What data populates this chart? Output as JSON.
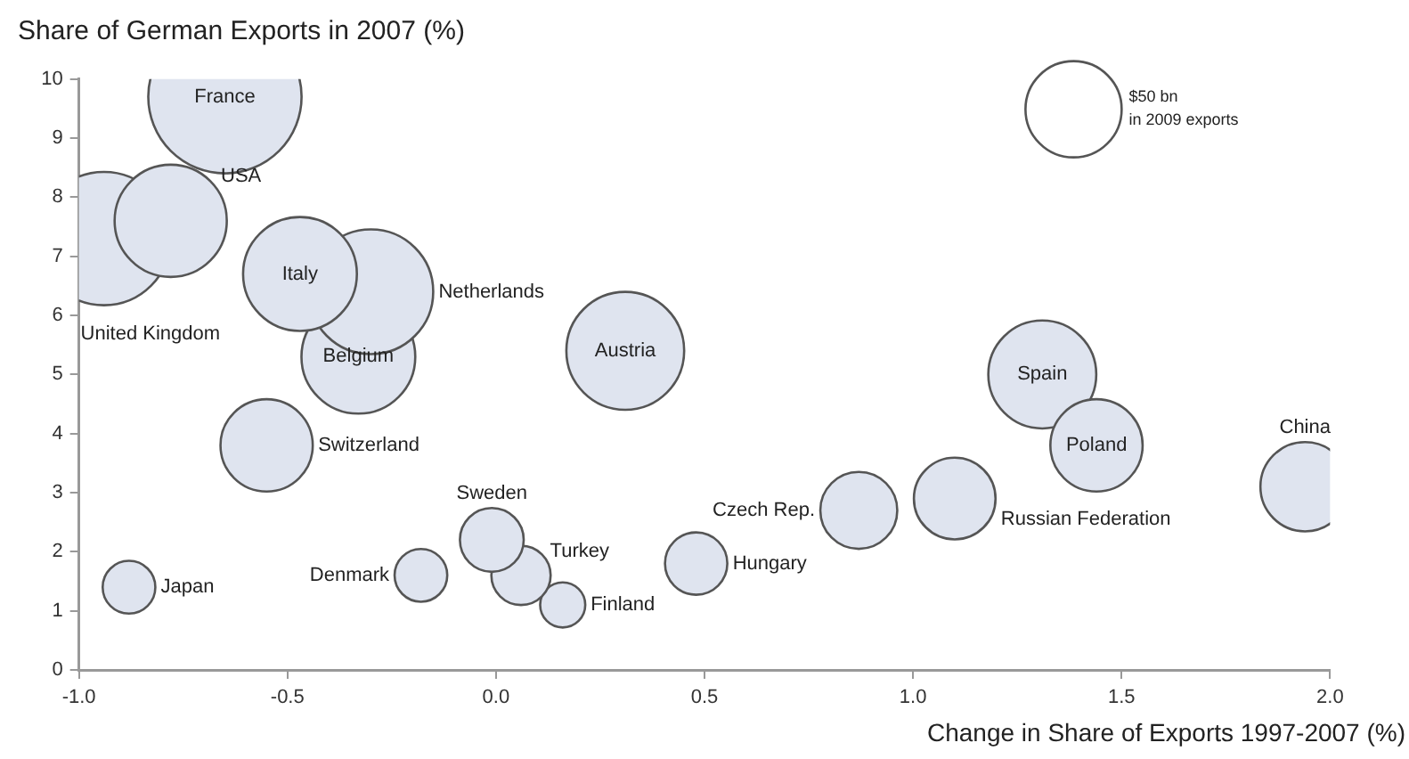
{
  "chart_data": {
    "type": "bubble",
    "ylabel": "Share of German Exports in 2007 (%)",
    "xlabel": "Change in Share of Exports 1997-2007 (%)",
    "xlim": [
      -1,
      2
    ],
    "xticks": [
      {
        "value": -1,
        "label": "-1.0"
      },
      {
        "value": -0.5,
        "label": "-0.5"
      },
      {
        "value": 0,
        "label": "0.0"
      },
      {
        "value": 0.5,
        "label": "0.5"
      },
      {
        "value": 1,
        "label": "1.0"
      },
      {
        "value": 1.5,
        "label": "1.5"
      },
      {
        "value": 2,
        "label": "2.0"
      }
    ],
    "ylim": [
      0,
      10
    ],
    "yticks": [
      0,
      1,
      2,
      3,
      4,
      5,
      6,
      7,
      8,
      9,
      10
    ],
    "grid": false,
    "legend": false,
    "size_legend": [
      {
        "value": 50,
        "label": "$50 bn"
      }
    ],
    "legend_title": "in 2009 exports",
    "series": [
      {
        "name": "France",
        "color": "#dfe4ef",
        "x": [
          -0.65
        ],
        "values": [
          9.7
        ],
        "sizes": [
          127
        ]
      },
      {
        "name": "USA",
        "color": "#dfe4ef",
        "x": [
          -0.78
        ],
        "values": [
          7.6
        ],
        "sizes": [
          68
        ]
      },
      {
        "name": "United Kingdom",
        "color": "#dfe4ef",
        "x": [
          -0.94
        ],
        "values": [
          7.3
        ],
        "sizes": [
          96
        ]
      },
      {
        "name": "Italy",
        "color": "#dfe4ef",
        "x": [
          -0.47
        ],
        "values": [
          6.7
        ],
        "sizes": [
          70
        ]
      },
      {
        "name": "Netherlands",
        "color": "#dfe4ef",
        "x": [
          -0.3
        ],
        "values": [
          6.4
        ],
        "sizes": [
          84
        ]
      },
      {
        "name": "Belgium",
        "color": "#dfe4ef",
        "x": [
          -0.33
        ],
        "values": [
          5.3
        ],
        "sizes": [
          70
        ]
      },
      {
        "name": "Austria",
        "color": "#dfe4ef",
        "x": [
          0.31
        ],
        "values": [
          5.4
        ],
        "sizes": [
          75
        ]
      },
      {
        "name": "Switzerland",
        "color": "#dfe4ef",
        "x": [
          -0.55
        ],
        "values": [
          3.8
        ],
        "sizes": [
          46
        ]
      },
      {
        "name": "Japan",
        "color": "#dfe4ef",
        "x": [
          -0.88
        ],
        "values": [
          1.4
        ],
        "sizes": [
          15
        ]
      },
      {
        "name": "Denmark",
        "color": "#dfe4ef",
        "x": [
          -0.18
        ],
        "values": [
          1.6
        ],
        "sizes": [
          15
        ]
      },
      {
        "name": "Sweden",
        "color": "#dfe4ef",
        "x": [
          -0.01
        ],
        "values": [
          2.2
        ],
        "sizes": [
          22
        ]
      },
      {
        "name": "Turkey",
        "color": "#dfe4ef",
        "x": [
          0.06
        ],
        "values": [
          1.6
        ],
        "sizes": [
          19
        ]
      },
      {
        "name": "Finland",
        "color": "#dfe4ef",
        "x": [
          0.16
        ],
        "values": [
          1.1
        ],
        "sizes": [
          11
        ]
      },
      {
        "name": "Hungary",
        "color": "#dfe4ef",
        "x": [
          0.48
        ],
        "values": [
          1.8
        ],
        "sizes": [
          21
        ]
      },
      {
        "name": "Czech Rep.",
        "color": "#dfe4ef",
        "x": [
          0.87
        ],
        "values": [
          2.7
        ],
        "sizes": [
          32
        ]
      },
      {
        "name": "Russian Federation",
        "color": "#dfe4ef",
        "x": [
          1.1
        ],
        "values": [
          2.9
        ],
        "sizes": [
          36
        ]
      },
      {
        "name": "Poland",
        "color": "#dfe4ef",
        "x": [
          1.44
        ],
        "values": [
          3.8
        ],
        "sizes": [
          46
        ]
      },
      {
        "name": "Spain",
        "color": "#dfe4ef",
        "x": [
          1.31
        ],
        "values": [
          5.0
        ],
        "sizes": [
          63
        ]
      },
      {
        "name": "China",
        "color": "#dfe4ef",
        "x": [
          1.94
        ],
        "values": [
          3.1
        ],
        "sizes": [
          43
        ]
      }
    ]
  }
}
